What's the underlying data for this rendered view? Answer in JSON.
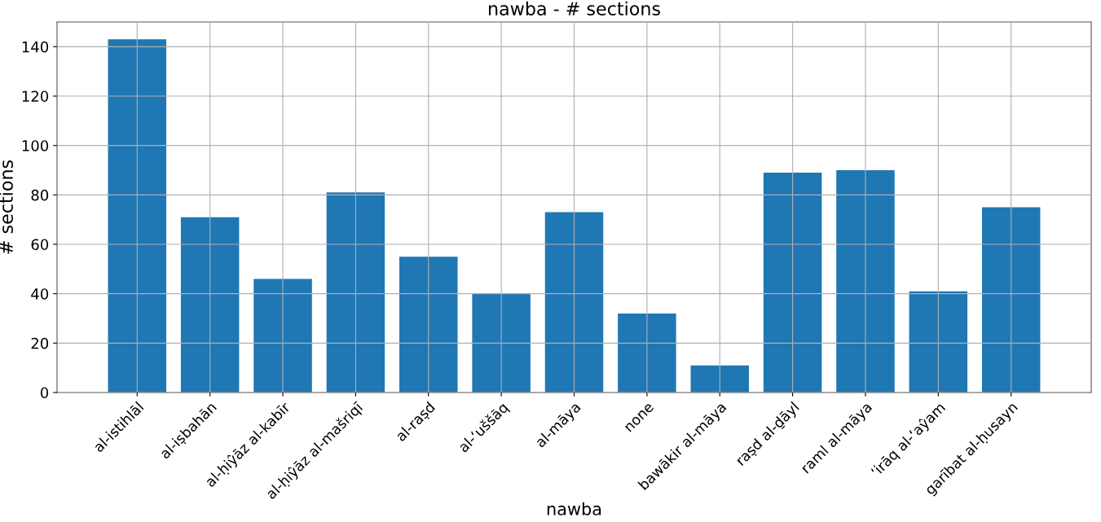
{
  "chart_data": {
    "type": "bar",
    "title": "nawba - # sections",
    "xlabel": "nawba",
    "ylabel": "# sections",
    "categories": [
      "al-istihlāl",
      "al-iṣbahān",
      "al-ḥiŷāz al-kabīr",
      "al-ḥiŷāz al-mašriqī",
      "al-raṣd",
      "al-ʻuššāq",
      "al-māya",
      "none",
      "bawākir al-māya",
      "raṣd al-ḏāyl",
      "raml al-māya",
      "ʻirāq al-ʻaŷam",
      "garībat al-ḥusayn"
    ],
    "values": [
      143,
      71,
      46,
      81,
      55,
      40,
      73,
      32,
      11,
      89,
      90,
      41,
      75
    ],
    "color": "#1f77b4",
    "ylim": [
      0,
      150
    ],
    "yticks": [
      0,
      20,
      40,
      60,
      80,
      100,
      120,
      140
    ],
    "grid": true
  }
}
